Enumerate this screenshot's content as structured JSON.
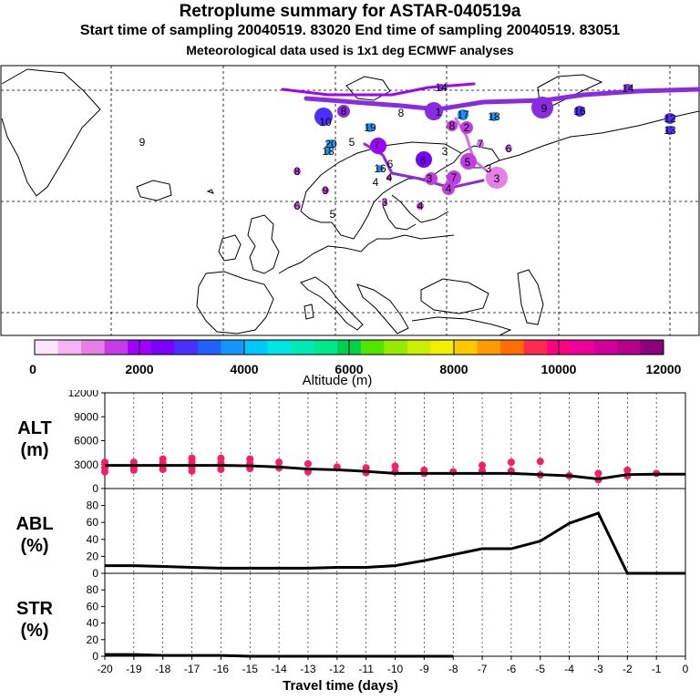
{
  "header": {
    "title": "Retroplume summary for ASTAR-040519a",
    "sampling_line": "Start time of sampling 20040519. 83020     End time of sampling 20040519. 83051",
    "met_line": "Meteorological data used is 1x1 deg ECMWF analyses"
  },
  "colorbar": {
    "label": "Altitude (m)",
    "ticks": [
      "0",
      "2000",
      "4000",
      "6000",
      "8000",
      "10000",
      "12000"
    ],
    "colors": [
      "#ffe6ff",
      "#f6b4f6",
      "#e67fe6",
      "#c43ce6",
      "#a000ff",
      "#7a00ff",
      "#4a30ff",
      "#2060ff",
      "#1496ff",
      "#00c8ff",
      "#00e6e6",
      "#00ebb4",
      "#00e68c",
      "#00d250",
      "#50e600",
      "#96ea00",
      "#c8f000",
      "#f0f000",
      "#ffc800",
      "#ff9b00",
      "#ff6e00",
      "#ff2a50",
      "#ff0082",
      "#f0009a",
      "#d2009a",
      "#b4008c",
      "#8c007d"
    ]
  },
  "map": {
    "trajectory_labels": [
      "1",
      "2",
      "3",
      "4",
      "5",
      "6",
      "7",
      "8",
      "9",
      "10",
      "11",
      "12",
      "13",
      "14",
      "15",
      "16",
      "17",
      "18",
      "19",
      "20"
    ],
    "colors": {
      "track": "#8a2be2",
      "track_light": "#d070f0",
      "landmass": "#000000"
    }
  },
  "chart_data": [
    {
      "type": "line",
      "title": "ALT",
      "ylabel": "ALT\n(m)",
      "ylabel_lines": [
        "ALT",
        "(m)"
      ],
      "ylim": [
        0,
        12000
      ],
      "yticks": [
        "0",
        "3000",
        "6000",
        "9000",
        "12000"
      ],
      "x": [
        -20,
        -19,
        -18,
        -17,
        -16,
        -15,
        -14,
        -13,
        -12,
        -11,
        -10,
        -9,
        -8,
        -7,
        -6,
        -5,
        -4,
        -3,
        -2,
        -1,
        0
      ],
      "series": [
        {
          "name": "median altitude",
          "values": [
            2900,
            2900,
            2900,
            2900,
            2900,
            2850,
            2700,
            2450,
            2350,
            2150,
            1900,
            1900,
            1900,
            1900,
            1900,
            1750,
            1600,
            1200,
            1750,
            1800,
            1800
          ]
        }
      ],
      "scatter_series": {
        "name": "cluster altitudes",
        "color": "#ff1a66",
        "x": [
          -20,
          -20,
          -20,
          -19,
          -19,
          -19,
          -18,
          -18,
          -18,
          -18,
          -17,
          -17,
          -17,
          -17,
          -16,
          -16,
          -16,
          -15,
          -15,
          -15,
          -14,
          -14,
          -13,
          -13,
          -12,
          -11,
          -11,
          -10,
          -10,
          -9,
          -9,
          -8,
          -7,
          -7,
          -6,
          -6,
          -5,
          -5,
          -4,
          -3,
          -3,
          -2,
          -2,
          -1
        ],
        "y": [
          3300,
          2600,
          2100,
          3300,
          2700,
          2300,
          3700,
          3200,
          2800,
          2400,
          3800,
          3300,
          2700,
          2200,
          3800,
          3200,
          2400,
          3700,
          3100,
          2500,
          3300,
          2600,
          3100,
          2100,
          2700,
          2600,
          2000,
          2800,
          2100,
          2300,
          1900,
          2100,
          2900,
          2200,
          3300,
          2200,
          3400,
          1700,
          1600,
          1900,
          1100,
          2300,
          1600,
          1900
        ]
      },
      "x_hidden": true
    },
    {
      "type": "line",
      "title": "ABL",
      "ylabel_lines": [
        "ABL",
        "(%)"
      ],
      "ylim": [
        0,
        100
      ],
      "yticks": [
        "0",
        "20",
        "40",
        "60",
        "80"
      ],
      "x": [
        -20,
        -19,
        -18,
        -17,
        -16,
        -15,
        -14,
        -13,
        -12,
        -11,
        -10,
        -9,
        -8,
        -7,
        -6,
        -5,
        -4,
        -3,
        -2,
        -1,
        0
      ],
      "series": [
        {
          "name": "ABL fraction",
          "values": [
            9,
            9,
            8,
            7,
            6,
            6,
            6,
            6,
            7,
            7,
            9,
            15,
            22,
            29,
            29,
            38,
            59,
            71,
            0,
            0,
            0
          ]
        }
      ]
    },
    {
      "type": "line",
      "title": "STR",
      "ylabel_lines": [
        "STR",
        "(%)"
      ],
      "ylim": [
        0,
        100
      ],
      "yticks": [
        "0",
        "20",
        "40",
        "60",
        "80"
      ],
      "x": [
        -20,
        -19,
        -18,
        -17,
        -16,
        -15,
        -14,
        -13,
        -12,
        -11,
        -10,
        -9,
        -8
      ],
      "series": [
        {
          "name": "stratospheric fraction",
          "values": [
            2,
            2,
            1,
            1,
            1,
            0,
            0,
            0,
            0,
            0,
            0,
            0,
            0
          ]
        }
      ],
      "xlabel": "Travel time (days)",
      "xticks": [
        "-20",
        "-19",
        "-18",
        "-17",
        "-16",
        "-15",
        "-14",
        "-13",
        "-12",
        "-11",
        "-10",
        "-9",
        "-8",
        "-7",
        "-6",
        "-5",
        "-4",
        "-3",
        "-2",
        "-1",
        "0"
      ]
    }
  ]
}
